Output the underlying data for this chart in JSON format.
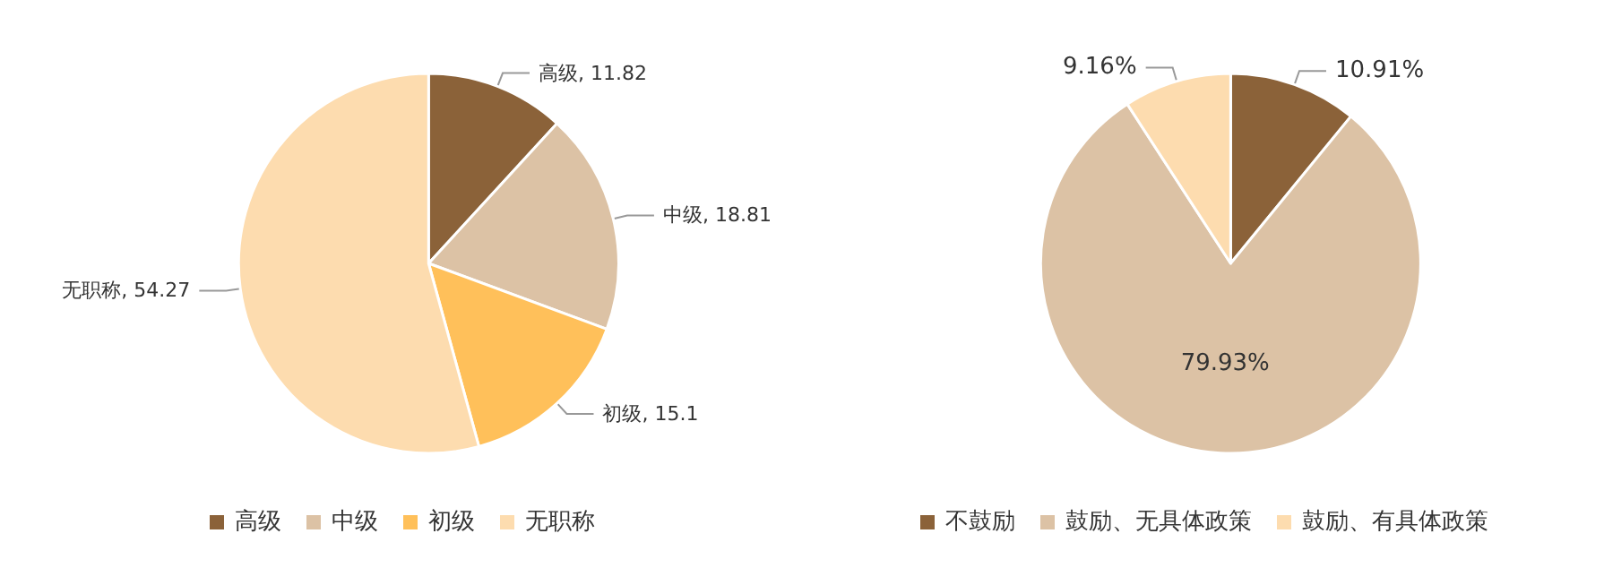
{
  "chart_data": [
    {
      "type": "pie",
      "categories": [
        "高级",
        "中级",
        "初级",
        "无职称"
      ],
      "values": [
        11.82,
        18.81,
        15.1,
        54.27
      ],
      "colors": [
        "#8b6239",
        "#dcc2a5",
        "#ffc05a",
        "#fddcaf"
      ],
      "value_labels": [
        "高级, 11.82",
        "中级, 18.81",
        "初级, 15.1",
        "无职称, 54.27"
      ],
      "legend": "bottom"
    },
    {
      "type": "pie",
      "categories": [
        "不鼓励",
        "鼓励、无具体政策",
        "鼓励、有具体政策"
      ],
      "values": [
        10.91,
        79.93,
        9.16
      ],
      "colors": [
        "#8b6239",
        "#dcc2a5",
        "#fddcaf"
      ],
      "value_labels": [
        "10.91%",
        "79.93%",
        "9.16%"
      ],
      "legend": "bottom"
    }
  ]
}
